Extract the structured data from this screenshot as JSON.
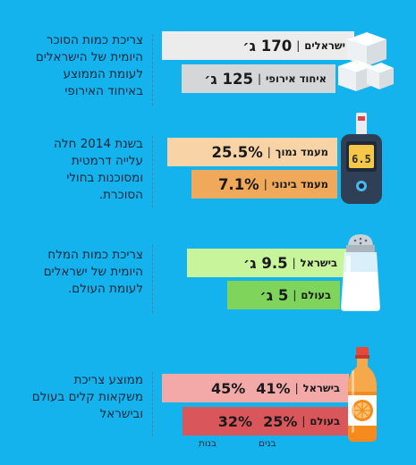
{
  "colors": {
    "background": "#14b3ee",
    "bar_sugar_israel": "#ececec",
    "bar_sugar_eu": "#d4d6d8",
    "bar_diabetes_low": "#f7d3a6",
    "bar_diabetes_mid": "#f0a95a",
    "bar_salt_israel": "#c8f59c",
    "bar_salt_world": "#7fd45c",
    "bar_drinks_israel": "#f2a9a7",
    "bar_drinks_world": "#d9565a"
  },
  "sections": {
    "sugar": {
      "desc_lines": [
        "צריכת כמות הסוכר",
        "היומית של הישראלים",
        "לעומת הממוצע",
        "באיחוד האירופי"
      ],
      "israel": {
        "label": "ישראלים",
        "value": "170 ג׳"
      },
      "eu": {
        "label": "איחוד אירופי",
        "value": "125 ג׳"
      },
      "icon": "sugar-cubes-icon"
    },
    "diabetes": {
      "desc_lines": [
        "בשנת 2014 חלה",
        "עלייה דרמטית",
        "ומסוכנות בחולי",
        "הסוכרת."
      ],
      "low": {
        "label": "מעמד נמוך",
        "value": "25.5%"
      },
      "mid": {
        "label": "מעמד בינוני",
        "value": "7.1%"
      },
      "icon": "glucometer-icon",
      "meter_reading": "6.5"
    },
    "salt": {
      "desc_lines": [
        "צריכת כמות המלח",
        "היומית של ישראלים",
        "לעומת העולם."
      ],
      "israel": {
        "label": "בישראל",
        "value": "9.5 ג׳"
      },
      "world": {
        "label": "בעולם",
        "value": "5 ג׳"
      },
      "icon": "salt-shaker-icon"
    },
    "drinks": {
      "desc_lines": [
        "ממוצע צריכת",
        "משקאות קלים בעולם",
        "ובישראל"
      ],
      "israel": {
        "label": "בישראל",
        "boys": "41%",
        "girls": "45%"
      },
      "world": {
        "label": "בעולם",
        "boys": "25%",
        "girls": "32%"
      },
      "legend": {
        "boys": "בנים",
        "girls": "בנות"
      },
      "icon": "soda-bottle-icon"
    }
  }
}
